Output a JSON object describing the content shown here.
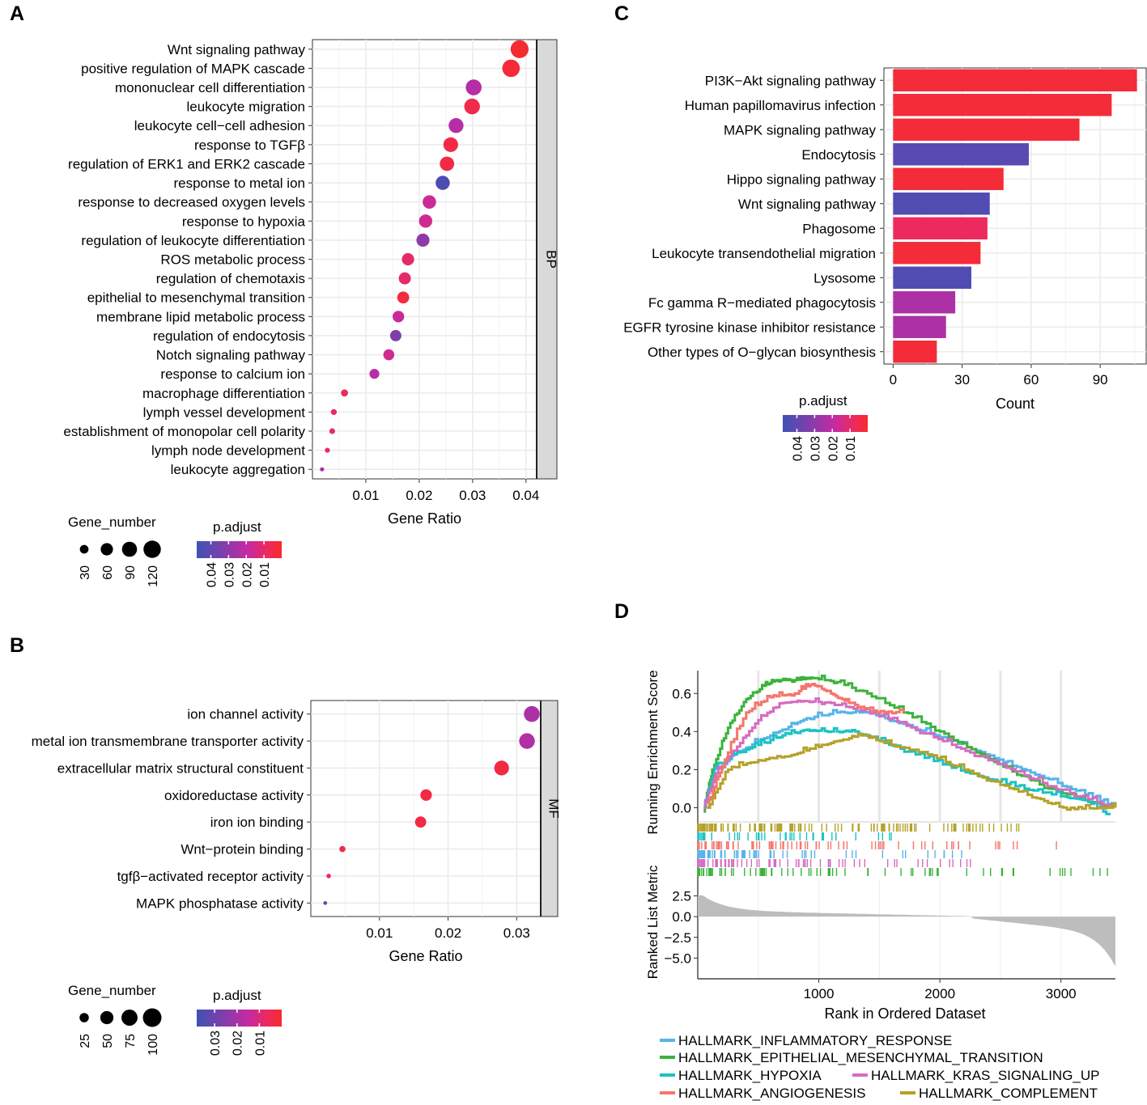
{
  "panel_labels": [
    "A",
    "B",
    "C",
    "D"
  ],
  "chart_data": [
    {
      "panel": "A",
      "type": "scatter",
      "title": "",
      "xlabel": "Gene Ratio",
      "ylabel": "",
      "facet": "BP",
      "xlim": [
        0.0,
        0.042
      ],
      "xticks": [
        0.01,
        0.02,
        0.03,
        0.04
      ],
      "xtick_labels": [
        "0.01",
        "0.02",
        "0.03",
        "0.04"
      ],
      "categories": [
        "Wnt signaling pathway",
        "positive regulation of MAPK cascade",
        "mononuclear cell differentiation",
        "leukocyte migration",
        "leukocyte cell−cell adhesion",
        "response to TGFβ",
        "regulation of ERK1 and ERK2 cascade",
        "response to metal ion",
        "response to decreased oxygen levels",
        "response to hypoxia",
        "regulation of leukocyte differentiation",
        "ROS metabolic process",
        "regulation of chemotaxis",
        "epithelial to mesenchymal transition",
        "membrane lipid metabolic process",
        "regulation of endocytosis",
        "Notch signaling pathway",
        "response to calcium ion",
        "macrophage differentiation",
        "lymph vessel development",
        "establishment of monopolar cell polarity",
        "lymph node development",
        "leukocyte aggregation"
      ],
      "gene_ratio": [
        0.0388,
        0.0372,
        0.0302,
        0.0299,
        0.0269,
        0.0259,
        0.0252,
        0.0244,
        0.0219,
        0.0212,
        0.0207,
        0.0179,
        0.0173,
        0.017,
        0.0161,
        0.0156,
        0.0143,
        0.0116,
        0.006,
        0.004,
        0.0037,
        0.0028,
        0.0018
      ],
      "gene_number": [
        128,
        122,
        100,
        98,
        88,
        86,
        82,
        80,
        72,
        70,
        68,
        60,
        58,
        57,
        53,
        51,
        48,
        39,
        20,
        14,
        13,
        10,
        7
      ],
      "p_adjust": [
        0.001,
        0.002,
        0.022,
        0.005,
        0.022,
        0.004,
        0.004,
        0.045,
        0.017,
        0.016,
        0.03,
        0.01,
        0.01,
        0.003,
        0.018,
        0.033,
        0.016,
        0.022,
        0.008,
        0.01,
        0.01,
        0.008,
        0.025
      ],
      "size_legend": {
        "title": "Gene_number",
        "values": [
          30,
          60,
          90,
          120
        ],
        "labels": [
          "30",
          "60",
          "90",
          "120"
        ]
      },
      "color_legend": {
        "title": "p.adjust",
        "labels": [
          "0.04",
          "0.03",
          "0.02",
          "0.01"
        ],
        "values": [
          0.04,
          0.03,
          0.02,
          0.01
        ],
        "range": [
          0.048,
          0.0
        ]
      }
    },
    {
      "panel": "B",
      "type": "scatter",
      "title": "",
      "xlabel": "Gene Ratio",
      "ylabel": "",
      "facet": "MF",
      "xlim": [
        0.0,
        0.0335
      ],
      "xticks": [
        0.01,
        0.02,
        0.03
      ],
      "xtick_labels": [
        "0.01",
        "0.02",
        "0.03"
      ],
      "categories": [
        "ion channel activity",
        "metal ion transmembrane transporter activity",
        "extracellular matrix structural constituent",
        "oxidoreductase activity",
        "iron ion binding",
        "Wnt−protein binding",
        "tgfβ−activated receptor activity",
        "MAPK phosphatase activity"
      ],
      "gene_ratio": [
        0.0322,
        0.0315,
        0.0278,
        0.0168,
        0.016,
        0.0046,
        0.0026,
        0.0021
      ],
      "gene_number": [
        72,
        71,
        63,
        38,
        36,
        11,
        6,
        4
      ],
      "p_adjust": [
        0.019,
        0.018,
        0.003,
        0.003,
        0.003,
        0.003,
        0.006,
        0.033
      ],
      "size_legend": {
        "title": "Gene_number",
        "values": [
          25,
          50,
          75,
          100
        ],
        "labels": [
          "25",
          "50",
          "75",
          "100"
        ]
      },
      "color_legend": {
        "title": "p.adjust",
        "labels": [
          "0.03",
          "0.02",
          "0.01"
        ],
        "values": [
          0.03,
          0.02,
          0.01
        ],
        "range": [
          0.038,
          0.0
        ]
      }
    },
    {
      "panel": "C",
      "type": "bar",
      "orientation": "horizontal",
      "title": "",
      "xlabel": "Count",
      "ylabel": "",
      "xlim": [
        -4,
        110
      ],
      "xticks": [
        0,
        30,
        60,
        90
      ],
      "xtick_labels": [
        "0",
        "30",
        "60",
        "90"
      ],
      "categories": [
        "PI3K−Akt signaling pathway",
        "Human papillomavirus infection",
        "MAPK signaling pathway",
        "Endocytosis",
        "Hippo signaling pathway",
        "Wnt signaling pathway",
        "Phagosome",
        "Leukocyte transendothelial migration",
        "Lysosome",
        "Fc gamma R−mediated phagocytosis",
        "EGFR tyrosine kinase inhibitor resistance",
        "Other types of O−glycan biosynthesis"
      ],
      "values": [
        106,
        95,
        81,
        59,
        48,
        42,
        41,
        38,
        34,
        27,
        23,
        19
      ],
      "p_adjust": [
        0.002,
        0.002,
        0.002,
        0.042,
        0.002,
        0.044,
        0.008,
        0.002,
        0.044,
        0.024,
        0.024,
        0.002
      ],
      "color_legend": {
        "title": "p.adjust",
        "labels": [
          "0.04",
          "0.03",
          "0.02",
          "0.01"
        ],
        "values": [
          0.04,
          0.03,
          0.02,
          0.01
        ],
        "range": [
          0.048,
          0.0
        ]
      }
    },
    {
      "panel": "D",
      "type": "line",
      "title": "",
      "xlabel": "Rank in Ordered Dataset",
      "ylabel": "Running Enrichment Score",
      "ylabel_lower": "Ranked List Metric",
      "xlim": [
        0,
        3450
      ],
      "xticks": [
        1000,
        2000,
        3000
      ],
      "xtick_labels": [
        "1000",
        "2000",
        "3000"
      ],
      "ylim": [
        -0.07,
        0.72
      ],
      "yticks": [
        0.0,
        0.2,
        0.4,
        0.6
      ],
      "ytick_labels": [
        "0.0",
        "0.2",
        "0.4",
        "0.6"
      ],
      "metric_ylim": [
        -7.5,
        4.5
      ],
      "metric_yticks": [
        2.5,
        0.0,
        -2.5,
        -5.0
      ],
      "metric_ytick_labels": [
        "2.5",
        "0.0",
        "−2.5",
        "−5.0"
      ],
      "series": [
        {
          "name": "HALLMARK_INFLAMMATORY_RESPONSE",
          "color": "#56b4e9",
          "x": [
            50,
            150,
            300,
            500,
            700,
            900,
            1150,
            1400,
            1700,
            2000,
            2300,
            2600,
            2900,
            3200,
            3450
          ],
          "y": [
            0.0,
            0.18,
            0.28,
            0.35,
            0.41,
            0.47,
            0.5,
            0.5,
            0.44,
            0.37,
            0.3,
            0.22,
            0.15,
            0.07,
            0.0
          ]
        },
        {
          "name": "HALLMARK_EPITHELIAL_MESENCHYMAL_TRANSITION",
          "color": "#3bb33b",
          "x": [
            50,
            120,
            250,
            400,
            550,
            650,
            800,
            950,
            1150,
            1400,
            1700,
            2000,
            2300,
            2600,
            2900,
            3200,
            3450
          ],
          "y": [
            -0.02,
            0.2,
            0.42,
            0.57,
            0.64,
            0.67,
            0.67,
            0.68,
            0.66,
            0.6,
            0.5,
            0.4,
            0.29,
            0.19,
            0.1,
            0.04,
            0.0
          ]
        },
        {
          "name": "HALLMARK_HYPOXIA",
          "color": "#19c3c3",
          "x": [
            50,
            150,
            300,
            500,
            700,
            900,
            1100,
            1300,
            1550,
            1800,
            2100,
            2400,
            2700,
            3000,
            3200,
            3400
          ],
          "y": [
            0.0,
            0.22,
            0.28,
            0.33,
            0.38,
            0.41,
            0.4,
            0.4,
            0.34,
            0.28,
            0.21,
            0.15,
            0.1,
            0.06,
            0.04,
            -0.04
          ]
        },
        {
          "name": "HALLMARK_KRAS_SIGNALING_UP",
          "color": "#d66bc0",
          "x": [
            50,
            150,
            300,
            500,
            700,
            900,
            1100,
            1350,
            1650,
            1950,
            2250,
            2550,
            2850,
            3150,
            3450
          ],
          "y": [
            0.0,
            0.18,
            0.3,
            0.46,
            0.55,
            0.56,
            0.55,
            0.51,
            0.45,
            0.37,
            0.29,
            0.21,
            0.13,
            0.06,
            0.0
          ]
        },
        {
          "name": "HALLMARK_ANGIOGENESIS",
          "color": "#f4766c",
          "x": [
            80,
            200,
            400,
            600,
            800,
            950,
            1100,
            1250,
            1450,
            1700
          ],
          "y": [
            0.0,
            0.22,
            0.5,
            0.58,
            0.6,
            0.65,
            0.6,
            0.55,
            0.51,
            0.5
          ]
        },
        {
          "name": "HALLMARK_COMPLEMENT",
          "color": "#b5a12a",
          "x": [
            80,
            250,
            500,
            750,
            950,
            1150,
            1350,
            1600,
            1900,
            2200,
            2500,
            2800,
            3050,
            3300,
            3450
          ],
          "y": [
            0.0,
            0.2,
            0.25,
            0.27,
            0.31,
            0.35,
            0.38,
            0.33,
            0.28,
            0.2,
            0.12,
            0.05,
            -0.01,
            0.0,
            0.0
          ]
        }
      ],
      "legend": [
        "HALLMARK_INFLAMMATORY_RESPONSE",
        "HALLMARK_EPITHELIAL_MESENCHYMAL_TRANSITION",
        "HALLMARK_HYPOXIA",
        "HALLMARK_KRAS_SIGNALING_UP",
        "HALLMARK_ANGIOGENESIS",
        "HALLMARK_COMPLEMENT"
      ]
    }
  ]
}
